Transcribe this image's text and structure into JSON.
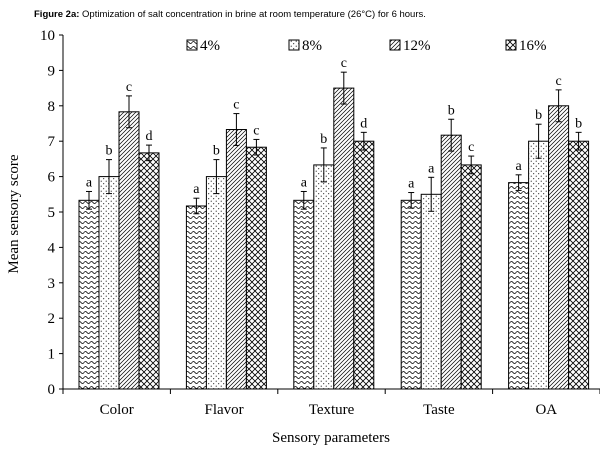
{
  "figure": {
    "label": "Figure 2a:",
    "caption": " Optimization of salt concentration in brine at room temperature (26°C) for 6 hours."
  },
  "chart_data": {
    "type": "bar",
    "title": "Figure 2a: Optimization of salt concentration in brine at room temperature (26°C) for 6 hours.",
    "xlabel": "Sensory parameters",
    "ylabel": "Mean sensory score",
    "ylim": [
      0,
      10
    ],
    "yticks": [
      "0",
      "1",
      "2",
      "3",
      "4",
      "5",
      "6",
      "7",
      "8",
      "9",
      "10"
    ],
    "categories": [
      "Color",
      "Flavor",
      "Texture",
      "Taste",
      "OA"
    ],
    "legend_position": "top",
    "grid": false,
    "error_bars": true,
    "series": [
      {
        "name": "4%",
        "pattern": "wave",
        "values": [
          5.33,
          5.17,
          5.33,
          5.33,
          5.83
        ],
        "errors": [
          0.25,
          0.22,
          0.25,
          0.22,
          0.22
        ],
        "letters": [
          "a",
          "a",
          "a",
          "a",
          "a"
        ]
      },
      {
        "name": "8%",
        "pattern": "dots",
        "values": [
          6.0,
          6.0,
          6.33,
          5.5,
          7.0
        ],
        "errors": [
          0.48,
          0.48,
          0.48,
          0.48,
          0.48
        ],
        "letters": [
          "b",
          "b",
          "b",
          "a",
          "b"
        ]
      },
      {
        "name": "12%",
        "pattern": "diag",
        "values": [
          7.83,
          7.33,
          8.5,
          7.17,
          8.0
        ],
        "errors": [
          0.45,
          0.45,
          0.45,
          0.45,
          0.45
        ],
        "letters": [
          "c",
          "c",
          "c",
          "b",
          "c"
        ]
      },
      {
        "name": "16%",
        "pattern": "cross",
        "values": [
          6.67,
          6.83,
          7.0,
          6.33,
          7.0
        ],
        "errors": [
          0.22,
          0.22,
          0.25,
          0.25,
          0.25
        ],
        "letters": [
          "d",
          "c",
          "d",
          "c",
          "b"
        ]
      }
    ]
  }
}
